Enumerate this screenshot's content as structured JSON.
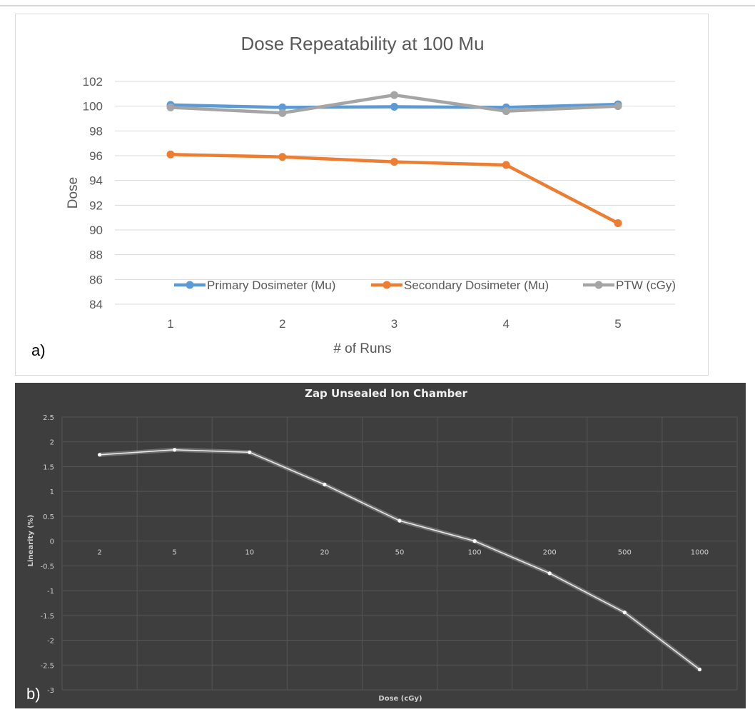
{
  "chart_data": [
    {
      "type": "line",
      "panel_label": "a)",
      "title": "Dose Repeatability at 100 Mu",
      "xlabel": "# of Runs",
      "ylabel": "Dose",
      "categories": [
        "1",
        "2",
        "3",
        "4",
        "5"
      ],
      "ylim": [
        84,
        102
      ],
      "yticks": [
        "84",
        "86",
        "88",
        "90",
        "92",
        "94",
        "96",
        "98",
        "100",
        "102"
      ],
      "grid": true,
      "legend_position": "bottom-inside",
      "series": [
        {
          "name": "Primary Dosimeter (Mu)",
          "color": "#5b9bd5",
          "values": [
            100.1,
            99.9,
            99.95,
            99.9,
            100.15
          ]
        },
        {
          "name": "Secondary Dosimeter (Mu)",
          "color": "#ed7d31",
          "values": [
            96.1,
            95.9,
            95.5,
            95.25,
            90.55
          ]
        },
        {
          "name": "PTW (cGy)",
          "color": "#a5a5a5",
          "values": [
            99.9,
            99.45,
            100.9,
            99.6,
            100.0
          ]
        }
      ]
    },
    {
      "type": "line",
      "panel_label": "b)",
      "title": "Zap Unsealed Ion Chamber",
      "xlabel": "Dose (cGy)",
      "ylabel": "Linearity (%)",
      "categories": [
        "2",
        "5",
        "10",
        "20",
        "50",
        "100",
        "200",
        "500",
        "1000"
      ],
      "ylim": [
        -3,
        2.5
      ],
      "yticks": [
        "-3",
        "-2.5",
        "-2",
        "-1.5",
        "-1",
        "-0.5",
        "0",
        "0.5",
        "1",
        "1.5",
        "2",
        "2.5"
      ],
      "grid": true,
      "background_color": "#3e3e3e",
      "series": [
        {
          "color": "#e8e8e8",
          "values": [
            1.74,
            1.84,
            1.79,
            1.14,
            0.41,
            0.0,
            -0.65,
            -1.44,
            -2.59
          ]
        }
      ]
    }
  ]
}
